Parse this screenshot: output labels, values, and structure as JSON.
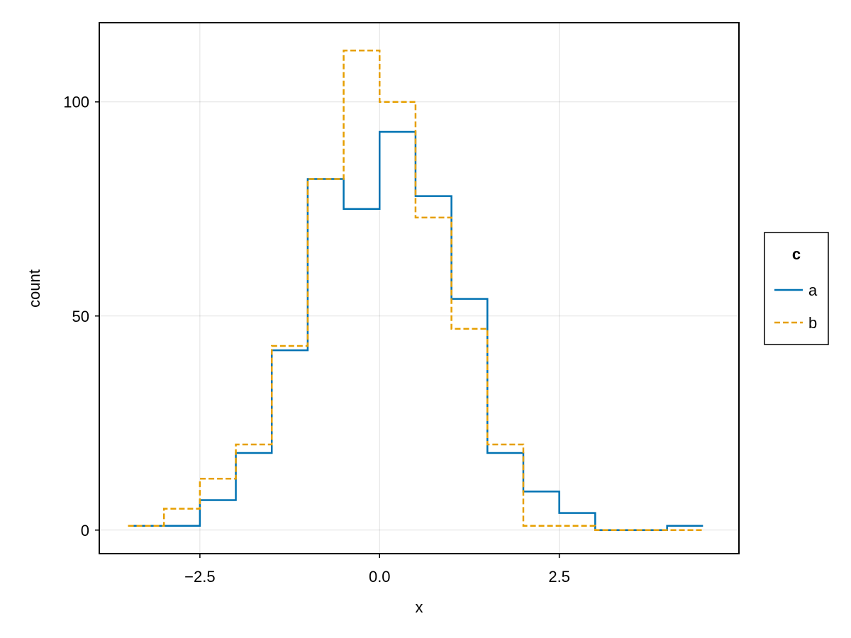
{
  "chart_data": {
    "type": "line",
    "subtype": "step-histogram",
    "xlabel": "x",
    "ylabel": "count",
    "xlim": [
      -3.9,
      5.0
    ],
    "ylim": [
      -5.5,
      118.5
    ],
    "x_ticks": [
      -2.5,
      0.0,
      2.5
    ],
    "x_tick_labels": [
      "−2.5",
      "0.0",
      "2.5"
    ],
    "y_ticks": [
      0,
      50,
      100
    ],
    "y_tick_labels": [
      "0",
      "50",
      "100"
    ],
    "grid": true,
    "legend": {
      "title": "c",
      "position": "right",
      "entries": [
        "a",
        "b"
      ]
    },
    "bin_edges": [
      -3.5,
      -3.0,
      -2.5,
      -2.0,
      -1.5,
      -1.0,
      -0.5,
      0.0,
      0.5,
      1.0,
      1.5,
      2.0,
      2.5,
      3.0,
      3.5,
      4.0,
      4.5
    ],
    "series": [
      {
        "name": "a",
        "color": "#0072b2",
        "dash": "solid",
        "values": [
          1,
          1,
          7,
          18,
          42,
          82,
          75,
          93,
          78,
          54,
          18,
          9,
          4,
          0,
          0,
          1
        ]
      },
      {
        "name": "b",
        "color": "#e69f00",
        "dash": "dashed",
        "values": [
          1,
          5,
          12,
          20,
          43,
          82,
          112,
          100,
          73,
          47,
          20,
          1,
          1,
          0,
          0,
          0
        ]
      }
    ]
  }
}
